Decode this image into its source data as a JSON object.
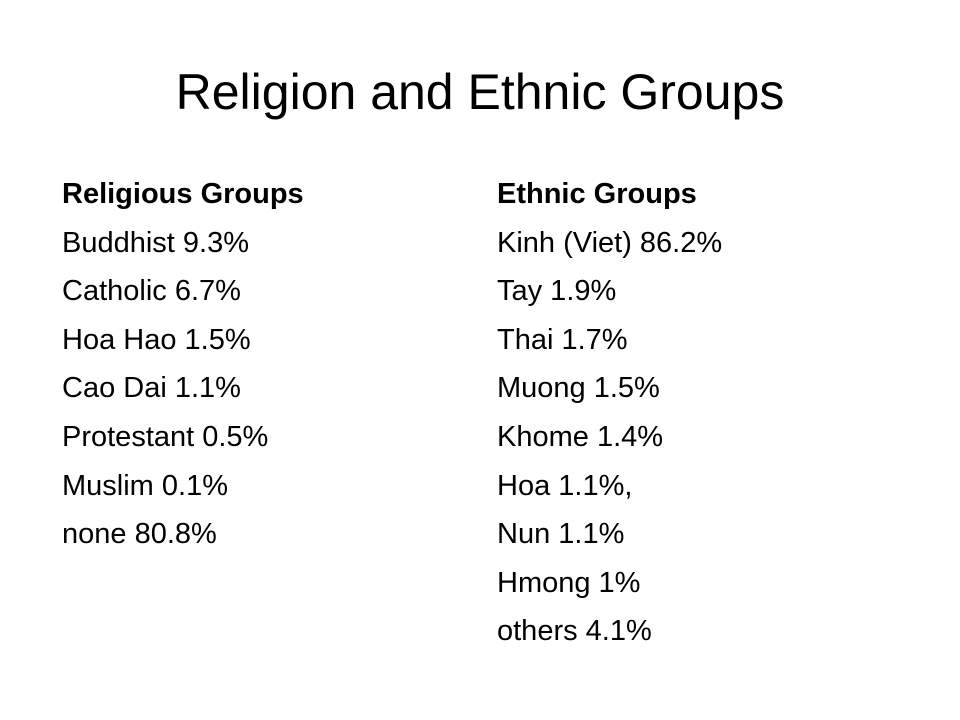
{
  "slide": {
    "title": "Religion and Ethnic Groups",
    "columns": [
      {
        "heading": "Religious Groups",
        "items": [
          "Buddhist 9.3%",
          "Catholic 6.7%",
          "Hoa Hao 1.5%",
          "Cao Dai 1.1%",
          "Protestant 0.5%",
          "Muslim 0.1%",
          "none 80.8%"
        ]
      },
      {
        "heading": "Ethnic Groups",
        "items": [
          "Kinh (Viet) 86.2%",
          "Tay 1.9%",
          "Thai 1.7%",
          "Muong 1.5%",
          "Khome 1.4%",
          "Hoa 1.1%,",
          "Nun 1.1%",
          "Hmong 1%",
          "others 4.1%"
        ]
      }
    ]
  }
}
